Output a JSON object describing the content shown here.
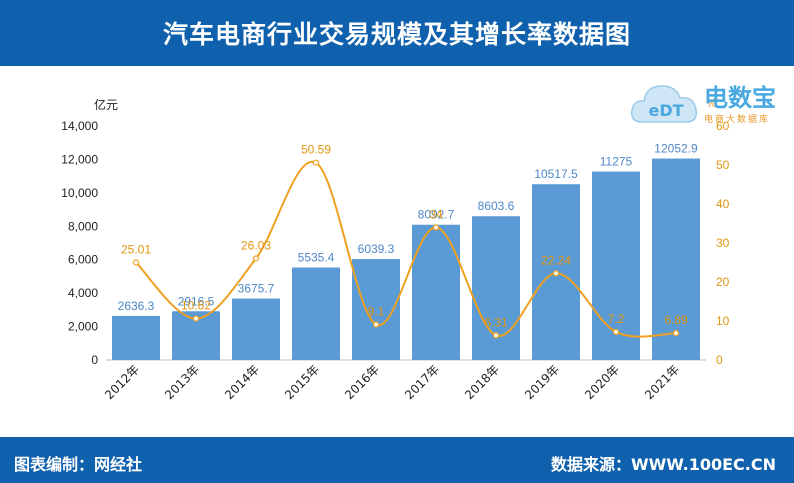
{
  "header": {
    "title": "汽车电商行业交易规模及其增长率数据图"
  },
  "footer": {
    "left_text": "图表编制：网经社",
    "right_text": "数据来源：WWW.100EC.CN"
  },
  "watermark": {
    "brand": "电数宝",
    "tagline": "电商大数据库",
    "logo": "eDT"
  },
  "chart_data": {
    "type": "bar",
    "categories": [
      "2012年",
      "2013年",
      "2014年",
      "2015年",
      "2016年",
      "2017年",
      "2018年",
      "2019年",
      "2020年",
      "2021年"
    ],
    "series": [
      {
        "type": "bar",
        "axis": "left",
        "values": [
          2636.3,
          2916.5,
          3675.7,
          5535.4,
          6039.3,
          8092.7,
          8603.6,
          10517.5,
          11275,
          12052.9
        ],
        "labels": [
          "2636.3",
          "2916.5",
          "3675.7",
          "5535.4",
          "6039.3",
          "8092.7",
          "8603.6",
          "10517.5",
          "11275",
          "12052.9"
        ],
        "color": "#5b9bd5",
        "label_color": "#4e88c7"
      },
      {
        "type": "line",
        "axis": "right",
        "values": [
          25.01,
          10.62,
          26.03,
          50.59,
          9.1,
          34.0,
          6.31,
          22.24,
          7.2,
          6.89
        ],
        "labels": [
          "25.01",
          "10.62",
          "26.03",
          "50.59",
          "9.1",
          "34",
          "6.31",
          "22.24",
          "7.2",
          "6.89"
        ],
        "color": "#f0a020"
      }
    ],
    "y_left": {
      "unit": "亿元",
      "min": 0,
      "max": 14000,
      "ticks": [
        "0",
        "2,000",
        "4,000",
        "6,000",
        "8,000",
        "10,000",
        "12,000",
        "14,000"
      ],
      "tick_values": [
        0,
        2000,
        4000,
        6000,
        8000,
        10000,
        12000,
        14000
      ]
    },
    "y_right": {
      "unit": "%",
      "min": 0,
      "max": 60,
      "ticks": [
        "0",
        "10",
        "20",
        "30",
        "40",
        "50",
        "60"
      ],
      "tick_values": [
        0,
        10,
        20,
        30,
        40,
        50,
        60
      ],
      "color": "#e0960f"
    },
    "grid": false,
    "legend": "none"
  }
}
